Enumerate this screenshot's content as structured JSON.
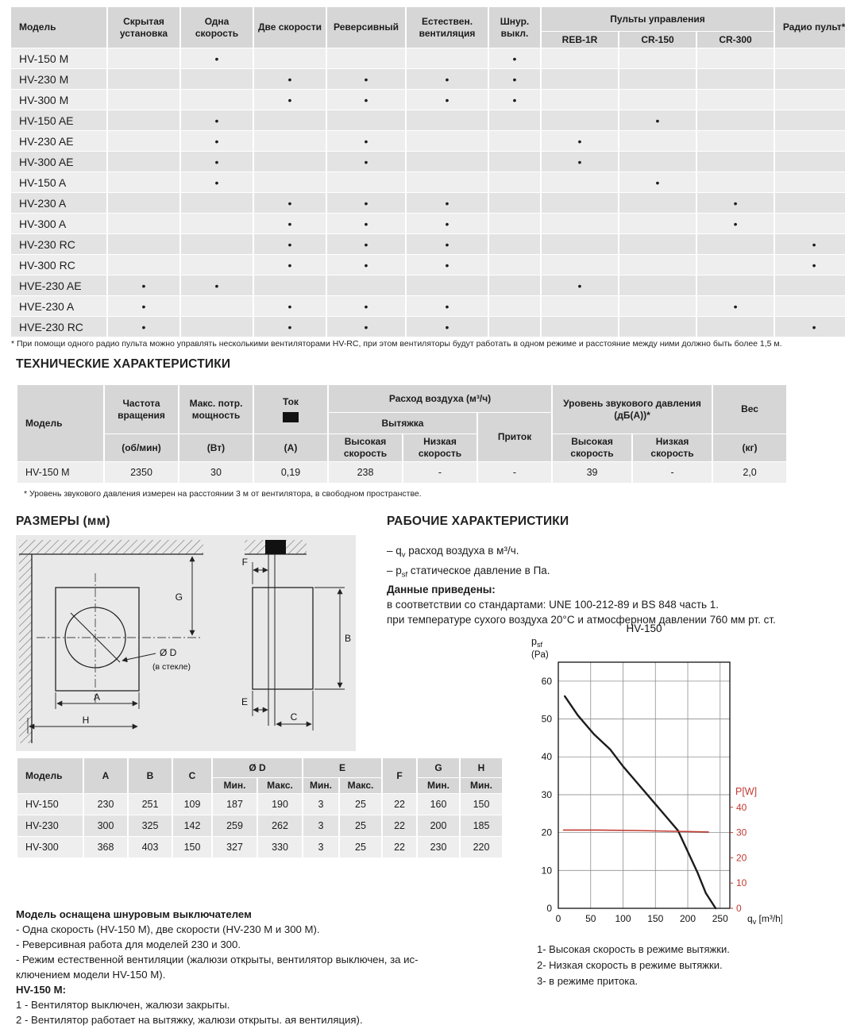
{
  "features": {
    "model_header": "Модель",
    "columns": [
      "Скрытая установка",
      "Одна скорость",
      "Две скорости",
      "Реверсивный",
      "Естествен. вентиляция",
      "Шнур. выкл."
    ],
    "remotes_header": "Пульты управления",
    "remotes": [
      "REB-1R",
      "CR-150",
      "CR-300"
    ],
    "radio_header": "Радио пульт*",
    "dot": "•",
    "rows": [
      {
        "model": "HV-150 M",
        "marks": [
          0,
          1,
          0,
          0,
          0,
          1,
          0,
          0,
          0,
          0
        ]
      },
      {
        "model": "HV-230 M",
        "marks": [
          0,
          0,
          1,
          1,
          1,
          1,
          0,
          0,
          0,
          0
        ]
      },
      {
        "model": "HV-300 M",
        "marks": [
          0,
          0,
          1,
          1,
          1,
          1,
          0,
          0,
          0,
          0
        ]
      },
      {
        "model": "HV-150 AE",
        "marks": [
          0,
          1,
          0,
          0,
          0,
          0,
          0,
          1,
          0,
          0
        ]
      },
      {
        "model": "HV-230 AE",
        "marks": [
          0,
          1,
          0,
          1,
          0,
          0,
          1,
          0,
          0,
          0
        ]
      },
      {
        "model": "HV-300 AE",
        "marks": [
          0,
          1,
          0,
          1,
          0,
          0,
          1,
          0,
          0,
          0
        ]
      },
      {
        "model": "HV-150 A",
        "marks": [
          0,
          1,
          0,
          0,
          0,
          0,
          0,
          1,
          0,
          0
        ]
      },
      {
        "model": "HV-230 A",
        "marks": [
          0,
          0,
          1,
          1,
          1,
          0,
          0,
          0,
          1,
          0
        ]
      },
      {
        "model": "HV-300 A",
        "marks": [
          0,
          0,
          1,
          1,
          1,
          0,
          0,
          0,
          1,
          0
        ]
      },
      {
        "model": "HV-230 RC",
        "marks": [
          0,
          0,
          1,
          1,
          1,
          0,
          0,
          0,
          0,
          1
        ]
      },
      {
        "model": "HV-300 RC",
        "marks": [
          0,
          0,
          1,
          1,
          1,
          0,
          0,
          0,
          0,
          1
        ]
      },
      {
        "model": "HVE-230 AE",
        "marks": [
          1,
          1,
          0,
          0,
          0,
          0,
          1,
          0,
          0,
          0
        ]
      },
      {
        "model": "HVE-230 A",
        "marks": [
          1,
          0,
          1,
          1,
          1,
          0,
          0,
          0,
          1,
          0
        ]
      },
      {
        "model": "HVE-230 RC",
        "marks": [
          1,
          0,
          1,
          1,
          1,
          0,
          0,
          0,
          0,
          1
        ]
      }
    ],
    "footnote": "* При помощи одного радио пульта можно управлять несколькими вентиляторами HV-RC, при этом вентиляторы будут работать в одном режиме и расстояние между ними должно быть более 1,5 м."
  },
  "tech": {
    "heading": "ТЕХНИЧЕСКИЕ ХАРАКТЕРИСТИКИ",
    "h": {
      "model": "Модель",
      "speed": "Частота вращения",
      "speed_unit": "(об/мин)",
      "power": "Макс. потр. мощность",
      "power_unit": "(Вт)",
      "current": "Ток",
      "current_unit": "(А)",
      "airflow": "Расход воздуха (м³/ч)",
      "exhaust": "Вытяжка",
      "intake": "Приток",
      "high_speed": "Высокая скорость",
      "low_speed": "Низкая скорость",
      "noise": "Уровень звукового давления (дБ(А))*",
      "weight": "Вес",
      "weight_unit": "(кг)"
    },
    "row": {
      "model": "HV-150 M",
      "rpm": "2350",
      "power": "30",
      "current": "0,19",
      "exhaust_high": "238",
      "exhaust_low": "-",
      "intake": "-",
      "noise_high": "39",
      "noise_low": "-",
      "weight": "2,0"
    },
    "footnote": "* Уровень звукового давления измерен на расстоянии 3 м от вентилятора, в свободном пространстве."
  },
  "dims": {
    "heading": "РАЗМЕРЫ (мм)",
    "diagram": {
      "a": "A",
      "b": "B",
      "c": "C",
      "d_label": "Ø D",
      "d_note": "(в стекле)",
      "e": "E",
      "f": "F",
      "g": "G",
      "h": "H"
    },
    "table": {
      "model_header": "Модель",
      "col_a": "A",
      "col_b": "B",
      "col_c": "C",
      "col_d": "Ø D",
      "col_e": "E",
      "col_f": "F",
      "col_g": "G",
      "col_h": "H",
      "min": "Мин.",
      "max": "Макс.",
      "rows": [
        {
          "model": "HV-150",
          "values": [
            "230",
            "251",
            "109",
            "187",
            "190",
            "3",
            "25",
            "22",
            "160",
            "150"
          ]
        },
        {
          "model": "HV-230",
          "values": [
            "300",
            "325",
            "142",
            "259",
            "262",
            "3",
            "25",
            "22",
            "200",
            "185"
          ]
        },
        {
          "model": "HV-300",
          "values": [
            "368",
            "403",
            "150",
            "327",
            "330",
            "3",
            "25",
            "22",
            "230",
            "220"
          ]
        }
      ]
    }
  },
  "performance": {
    "heading": "РАБОЧИЕ ХАРАКТЕРИСТИКИ",
    "lines": [
      {
        "pre": "– q",
        "sub": "v",
        "post": " расход воздуха в м³/ч.",
        "bold": false
      },
      {
        "pre": "– p",
        "sub": "sf",
        "post": " статическое давление в Па.",
        "bold": false
      },
      {
        "pre": "Данные приведены:",
        "sub": "",
        "post": "",
        "bold": true
      },
      {
        "pre": "в соответствии со стандартами: UNE 100-212-89 и BS 848 часть 1.",
        "sub": "",
        "post": "",
        "bold": false
      },
      {
        "pre": "при температуре сухого воздуха 20°C и атмосферном давлении 760 мм рт. ст.",
        "sub": "",
        "post": "",
        "bold": false
      }
    ]
  },
  "chart_data": {
    "type": "line",
    "title": "HV-150",
    "ylabel_main": "p",
    "ylabel_sub": "sf",
    "ylabel_unit": "(Pa)",
    "xlabel_main": "q",
    "xlabel_sub": "v",
    "xlabel_unit": " [m³/h]",
    "xlim": [
      0,
      265
    ],
    "ylim": [
      0,
      65
    ],
    "x_ticks": [
      0,
      50,
      100,
      150,
      200,
      250
    ],
    "y_ticks": [
      0,
      10,
      20,
      30,
      40,
      50,
      60
    ],
    "grid": true,
    "right_axis": {
      "label": "P[W]",
      "color": "#c03a32",
      "ticks": [
        0,
        10,
        20,
        30,
        40
      ],
      "pa_per_w": 0.667
    },
    "series": [
      {
        "id": "psf-exhaust-high",
        "name": "Высокая скорость в режиме вытяжки",
        "color": "#1c1c1c",
        "width": 2.4,
        "x": [
          10,
          30,
          55,
          80,
          100,
          125,
          150,
          170,
          185,
          200,
          215,
          228,
          243
        ],
        "y": [
          56,
          51,
          46,
          42,
          37.5,
          32.5,
          27.5,
          23.5,
          20.5,
          15,
          9.5,
          4,
          0
        ]
      },
      {
        "id": "power-consumption",
        "name": "P[W]",
        "color": "#c03a32",
        "width": 1.6,
        "axis": "right",
        "x": [
          8,
          60,
          120,
          180,
          232
        ],
        "y": [
          31,
          31,
          30.8,
          30.5,
          30.2
        ]
      }
    ],
    "legend": [
      "1- Высокая скорость в режиме вытяжки.",
      "2- Низкая скорость в режиме вытяжки.",
      "3- в режиме притока."
    ]
  },
  "notes": {
    "lines": [
      {
        "text": "Модель оснащена шнуровым выключателем",
        "bold": true
      },
      {
        "text": "- Одна скорость (HV-150 M), две скорости (HV-230 M и 300 M).",
        "bold": false
      },
      {
        "text": "- Реверсивная работа для моделей 230 и 300.",
        "bold": false
      },
      {
        "text": "- Режим естественной вентиляции (жалюзи открыты, вентилятор выключен, за ис-",
        "bold": false
      },
      {
        "text": "ключением модели HV-150 M).",
        "bold": false
      },
      {
        "text": "HV-150 M:",
        "bold": true
      },
      {
        "text": "1 - Вентилятор выключен, жалюзи закрыты.",
        "bold": false
      },
      {
        "text": "2 - Вентилятор работает на вытяжку, жалюзи открыты.  ая вентиляция).",
        "bold": false
      }
    ]
  }
}
